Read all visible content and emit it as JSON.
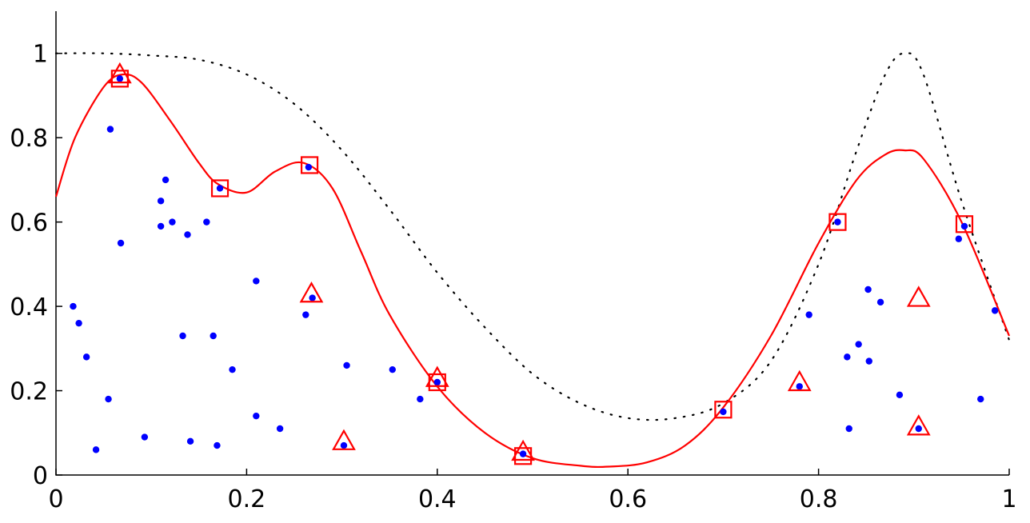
{
  "chart_data": {
    "type": "scatter",
    "title": "",
    "xlabel": "",
    "ylabel": "",
    "xlim": [
      0,
      1
    ],
    "ylim": [
      0,
      1.1
    ],
    "xticks": [
      "0",
      "0.2",
      "0.4",
      "0.6",
      "0.8",
      "1"
    ],
    "yticks": [
      "0",
      "0.2",
      "0.4",
      "0.6",
      "0.8",
      "1"
    ],
    "grid": false,
    "legend": "none",
    "colors": {
      "points": "#0000ff",
      "fit": "#ff0000",
      "true_function": "#000000",
      "square_markers": "#ff0000",
      "triangle_markers": "#ff0000"
    },
    "series": [
      {
        "style": "dotted-line",
        "x": [
          0.0,
          0.05,
          0.1,
          0.15,
          0.2,
          0.25,
          0.3,
          0.35,
          0.4,
          0.45,
          0.5,
          0.55,
          0.6,
          0.65,
          0.7,
          0.75,
          0.8,
          0.84,
          0.87,
          0.89,
          0.91,
          0.95,
          1.0
        ],
        "y": [
          1.0,
          1.0,
          0.995,
          0.985,
          0.95,
          0.88,
          0.77,
          0.63,
          0.48,
          0.35,
          0.24,
          0.17,
          0.135,
          0.135,
          0.17,
          0.27,
          0.5,
          0.77,
          0.95,
          1.0,
          0.95,
          0.65,
          0.32
        ]
      },
      {
        "style": "solid-line",
        "x": [
          0.0,
          0.02,
          0.05,
          0.07,
          0.09,
          0.12,
          0.15,
          0.17,
          0.2,
          0.23,
          0.26,
          0.29,
          0.32,
          0.35,
          0.4,
          0.45,
          0.5,
          0.55,
          0.58,
          0.62,
          0.66,
          0.7,
          0.75,
          0.8,
          0.84,
          0.87,
          0.89,
          0.91,
          0.95,
          1.0
        ],
        "y": [
          0.66,
          0.8,
          0.92,
          0.95,
          0.93,
          0.84,
          0.74,
          0.69,
          0.67,
          0.72,
          0.74,
          0.68,
          0.53,
          0.38,
          0.21,
          0.1,
          0.04,
          0.022,
          0.02,
          0.03,
          0.07,
          0.16,
          0.33,
          0.55,
          0.7,
          0.76,
          0.77,
          0.75,
          0.6,
          0.33
        ]
      },
      {
        "style": "dots",
        "x": [
          0.018,
          0.024,
          0.032,
          0.042,
          0.055,
          0.057,
          0.067,
          0.068,
          0.093,
          0.11,
          0.11,
          0.115,
          0.122,
          0.133,
          0.138,
          0.141,
          0.158,
          0.165,
          0.169,
          0.172,
          0.185,
          0.21,
          0.21,
          0.235,
          0.262,
          0.265,
          0.269,
          0.302,
          0.305,
          0.353,
          0.382,
          0.4,
          0.49,
          0.7,
          0.78,
          0.79,
          0.82,
          0.83,
          0.832,
          0.842,
          0.852,
          0.853,
          0.865,
          0.885,
          0.905,
          0.947,
          0.953,
          0.97,
          0.985
        ],
        "y": [
          0.4,
          0.36,
          0.28,
          0.06,
          0.18,
          0.82,
          0.94,
          0.55,
          0.09,
          0.65,
          0.59,
          0.7,
          0.6,
          0.33,
          0.57,
          0.08,
          0.6,
          0.33,
          0.07,
          0.68,
          0.25,
          0.46,
          0.14,
          0.11,
          0.38,
          0.73,
          0.42,
          0.07,
          0.26,
          0.25,
          0.18,
          0.22,
          0.05,
          0.15,
          0.21,
          0.38,
          0.6,
          0.28,
          0.11,
          0.31,
          0.44,
          0.27,
          0.41,
          0.19,
          0.11,
          0.56,
          0.59,
          0.18,
          0.39
        ]
      },
      {
        "style": "squares",
        "x": [
          0.067,
          0.172,
          0.266,
          0.4,
          0.49,
          0.7,
          0.82,
          0.953
        ],
        "y": [
          0.94,
          0.68,
          0.735,
          0.22,
          0.045,
          0.155,
          0.6,
          0.595
        ]
      },
      {
        "style": "triangles",
        "x": [
          0.067,
          0.268,
          0.302,
          0.4,
          0.49,
          0.78,
          0.905,
          0.905
        ],
        "y": [
          0.95,
          0.43,
          0.08,
          0.23,
          0.055,
          0.22,
          0.42,
          0.115
        ]
      }
    ]
  }
}
